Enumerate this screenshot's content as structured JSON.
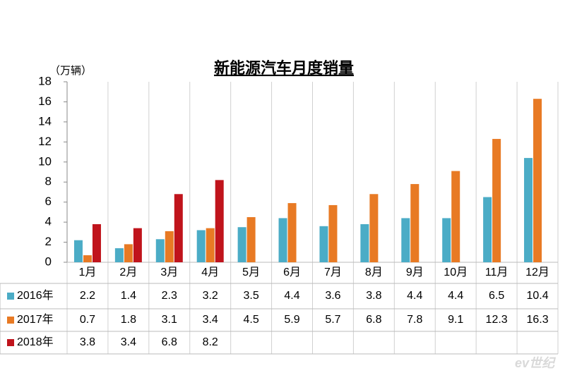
{
  "chart_data": {
    "type": "bar",
    "title": "新能源汽车月度销量",
    "y_label": "（万辆）",
    "categories": [
      "1月",
      "2月",
      "3月",
      "4月",
      "5月",
      "6月",
      "7月",
      "8月",
      "9月",
      "10月",
      "11月",
      "12月"
    ],
    "series": [
      {
        "name": "2016年",
        "color": "#4bacc6",
        "values": [
          2.2,
          1.4,
          2.3,
          3.2,
          3.5,
          4.4,
          3.6,
          3.8,
          4.4,
          4.4,
          6.5,
          10.4
        ]
      },
      {
        "name": "2017年",
        "color": "#e87a24",
        "values": [
          0.7,
          1.8,
          3.1,
          3.4,
          4.5,
          5.9,
          5.7,
          6.8,
          7.8,
          9.1,
          12.3,
          16.3
        ]
      },
      {
        "name": "2018年",
        "color": "#c0141c",
        "values": [
          3.8,
          3.4,
          6.8,
          8.2,
          null,
          null,
          null,
          null,
          null,
          null,
          null,
          null
        ]
      }
    ],
    "ylim": [
      0,
      18
    ],
    "yticks": [
      0,
      2,
      4,
      6,
      8,
      10,
      12,
      14,
      16,
      18
    ],
    "grid": false,
    "watermark": "ev世纪"
  }
}
